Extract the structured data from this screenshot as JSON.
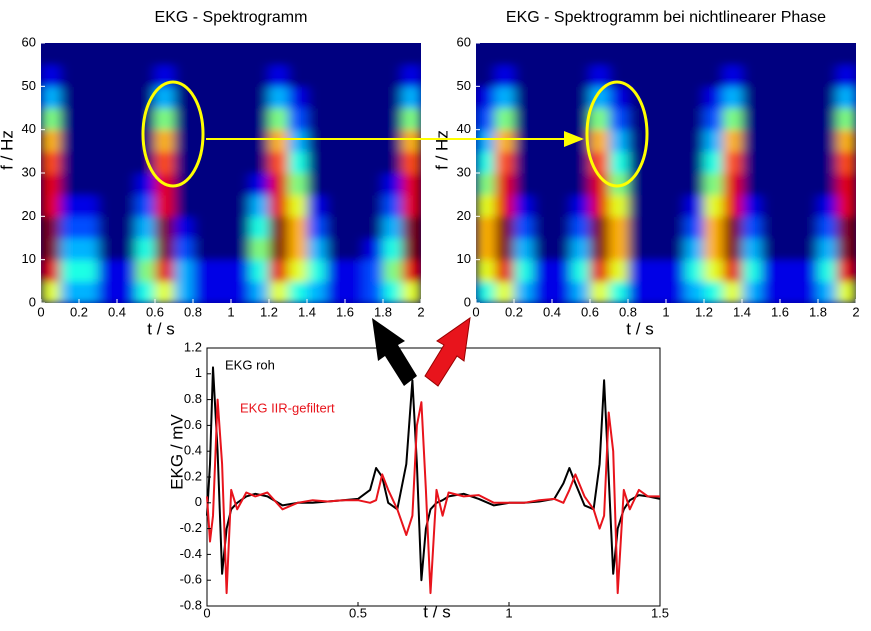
{
  "chart_data": [
    {
      "type": "heatmap",
      "title": "EKG - Spektrogramm",
      "xlabel": "t / s",
      "ylabel": "f / Hz",
      "xlim": [
        0,
        2
      ],
      "ylim": [
        0,
        60
      ],
      "zlim": [
        0,
        10
      ],
      "colormap": "jet",
      "xticks": [
        0,
        0.2,
        0.4,
        0.6,
        0.8,
        1,
        1.2,
        1.4,
        1.6,
        1.8,
        2
      ],
      "yticks": [
        0,
        10,
        20,
        30,
        40,
        50,
        60
      ],
      "values": [
        [
          6,
          9,
          10,
          10,
          9,
          9,
          8,
          7,
          5,
          3,
          1,
          0
        ],
        [
          3,
          4,
          3,
          2,
          1,
          0,
          0,
          0,
          0,
          0,
          0,
          0
        ],
        [
          3,
          4,
          3,
          2,
          1,
          0,
          0,
          0,
          0,
          0,
          0,
          0
        ],
        [
          1,
          1,
          0,
          0,
          0,
          0,
          0,
          0,
          0,
          0,
          0,
          0
        ],
        [
          1,
          1,
          0,
          0,
          0,
          0,
          0,
          0,
          0,
          0,
          0,
          0
        ],
        [
          4,
          5,
          4,
          3,
          2,
          1,
          0,
          0,
          0,
          0,
          0,
          0
        ],
        [
          6,
          9,
          10,
          10,
          9,
          9,
          8,
          7,
          5,
          3,
          1,
          0
        ],
        [
          3,
          3,
          2,
          1,
          0,
          0,
          0,
          0,
          0,
          0,
          0,
          0
        ],
        [
          1,
          1,
          0,
          0,
          0,
          0,
          0,
          0,
          0,
          0,
          0,
          0
        ],
        [
          1,
          1,
          0,
          0,
          0,
          0,
          0,
          0,
          0,
          0,
          0,
          0
        ],
        [
          1,
          1,
          0,
          0,
          0,
          0,
          0,
          0,
          0,
          0,
          0,
          0
        ],
        [
          3,
          4,
          5,
          4,
          3,
          1,
          0,
          0,
          0,
          0,
          0,
          0
        ],
        [
          6,
          9,
          10,
          10,
          9,
          9,
          8,
          7,
          5,
          3,
          1,
          0
        ],
        [
          4,
          6,
          7,
          7,
          6,
          5,
          4,
          3,
          2,
          1,
          0,
          0
        ],
        [
          3,
          4,
          3,
          2,
          1,
          0,
          0,
          0,
          0,
          0,
          0,
          0
        ],
        [
          1,
          1,
          0,
          0,
          0,
          0,
          0,
          0,
          0,
          0,
          0,
          0
        ],
        [
          1,
          1,
          0,
          0,
          0,
          0,
          0,
          0,
          0,
          0,
          0,
          0
        ],
        [
          2,
          2,
          1,
          0,
          0,
          0,
          0,
          0,
          0,
          0,
          0,
          0
        ],
        [
          4,
          5,
          4,
          3,
          2,
          1,
          0,
          0,
          0,
          0,
          0,
          0
        ],
        [
          6,
          9,
          10,
          10,
          9,
          9,
          8,
          7,
          5,
          3,
          1,
          0
        ]
      ]
    },
    {
      "type": "heatmap",
      "title": "EKG - Spektrogramm  bei nichtlinearer Phase",
      "xlabel": "t / s",
      "ylabel": "f / Hz",
      "xlim": [
        0,
        2
      ],
      "ylim": [
        0,
        60
      ],
      "zlim": [
        0,
        10
      ],
      "colormap": "jet",
      "xticks": [
        0,
        0.2,
        0.4,
        0.6,
        0.8,
        1,
        1.2,
        1.4,
        1.6,
        1.8,
        2
      ],
      "yticks": [
        0,
        10,
        20,
        30,
        40,
        50,
        60
      ],
      "values": [
        [
          4,
          6,
          7,
          7,
          6,
          5,
          4,
          3,
          2,
          1,
          0,
          0
        ],
        [
          6,
          9,
          10,
          10,
          9,
          9,
          8,
          7,
          5,
          3,
          1,
          0
        ],
        [
          3,
          4,
          3,
          2,
          1,
          0,
          0,
          0,
          0,
          0,
          0,
          0
        ],
        [
          1,
          1,
          0,
          0,
          0,
          0,
          0,
          0,
          0,
          0,
          0,
          0
        ],
        [
          1,
          1,
          0,
          0,
          0,
          0,
          0,
          0,
          0,
          0,
          0,
          0
        ],
        [
          3,
          4,
          3,
          2,
          1,
          0,
          0,
          0,
          0,
          0,
          0,
          0
        ],
        [
          6,
          9,
          10,
          10,
          9,
          9,
          8,
          7,
          5,
          3,
          1,
          0
        ],
        [
          4,
          6,
          7,
          7,
          6,
          5,
          4,
          3,
          2,
          1,
          0,
          0
        ],
        [
          1,
          1,
          0,
          0,
          0,
          0,
          0,
          0,
          0,
          0,
          0,
          0
        ],
        [
          1,
          1,
          0,
          0,
          0,
          0,
          0,
          0,
          0,
          0,
          0,
          0
        ],
        [
          1,
          1,
          0,
          0,
          0,
          0,
          0,
          0,
          0,
          0,
          0,
          0
        ],
        [
          3,
          4,
          3,
          2,
          1,
          0,
          0,
          0,
          0,
          0,
          0,
          0
        ],
        [
          4,
          6,
          7,
          7,
          6,
          5,
          4,
          3,
          2,
          1,
          0,
          0
        ],
        [
          6,
          9,
          10,
          10,
          9,
          9,
          8,
          7,
          5,
          3,
          1,
          0
        ],
        [
          3,
          4,
          3,
          2,
          1,
          0,
          0,
          0,
          0,
          0,
          0,
          0
        ],
        [
          1,
          1,
          0,
          0,
          0,
          0,
          0,
          0,
          0,
          0,
          0,
          0
        ],
        [
          1,
          1,
          0,
          0,
          0,
          0,
          0,
          0,
          0,
          0,
          0,
          0
        ],
        [
          1,
          1,
          0,
          0,
          0,
          0,
          0,
          0,
          0,
          0,
          0,
          0
        ],
        [
          3,
          4,
          3,
          2,
          1,
          0,
          0,
          0,
          0,
          0,
          0,
          0
        ],
        [
          6,
          9,
          10,
          10,
          9,
          9,
          8,
          7,
          5,
          3,
          1,
          0
        ]
      ]
    },
    {
      "type": "line",
      "xlabel": "t / s",
      "ylabel": "EKG / mV",
      "xlim": [
        0,
        1.5
      ],
      "ylim": [
        -0.8,
        1.2
      ],
      "xticks": [
        0,
        0.5,
        1,
        1.5
      ],
      "yticks": [
        -0.8,
        -0.6,
        -0.4,
        -0.2,
        0,
        0.2,
        0.4,
        0.6,
        0.8,
        1,
        1.2
      ],
      "x": [
        0,
        0.01,
        0.02,
        0.035,
        0.05,
        0.065,
        0.08,
        0.1,
        0.13,
        0.16,
        0.2,
        0.25,
        0.3,
        0.35,
        0.4,
        0.45,
        0.5,
        0.54,
        0.56,
        0.58,
        0.6,
        0.63,
        0.66,
        0.68,
        0.695,
        0.71,
        0.725,
        0.74,
        0.76,
        0.78,
        0.8,
        0.85,
        0.9,
        0.95,
        1,
        1.05,
        1.1,
        1.15,
        1.18,
        1.2,
        1.22,
        1.25,
        1.28,
        1.3,
        1.315,
        1.33,
        1.345,
        1.36,
        1.38,
        1.4,
        1.43,
        1.46,
        1.5
      ],
      "series": [
        {
          "name": "EKG roh",
          "color": "#000000",
          "values": [
            -0.1,
            0.3,
            1.05,
            0.4,
            -0.55,
            -0.2,
            -0.05,
            0,
            0.05,
            0.07,
            0.05,
            -0.02,
            0,
            0,
            0.01,
            0.02,
            0.03,
            0.1,
            0.27,
            0.2,
            0,
            -0.05,
            0.3,
            0.95,
            0.3,
            -0.6,
            -0.2,
            -0.05,
            0,
            0.02,
            0.05,
            0.07,
            0.03,
            -0.02,
            0,
            0,
            0.01,
            0.03,
            0.15,
            0.27,
            0.15,
            -0.02,
            -0.05,
            0.3,
            0.95,
            0.2,
            -0.55,
            -0.2,
            -0.05,
            0.02,
            0.06,
            0.05,
            0.03
          ]
        },
        {
          "name": "EKG IIR-gefiltert",
          "color": "#e8141c",
          "values": [
            0.05,
            -0.3,
            -0.1,
            0.8,
            0.3,
            -0.7,
            0.1,
            -0.05,
            0.08,
            0.05,
            0.08,
            -0.05,
            0,
            0.02,
            0.01,
            0.02,
            0.02,
            0,
            0.02,
            0.22,
            0.1,
            -0.05,
            -0.25,
            -0.1,
            0.6,
            0.78,
            0.1,
            -0.7,
            0.1,
            -0.1,
            0.08,
            0.05,
            0.06,
            0,
            0,
            0,
            0.02,
            0.03,
            0,
            0.1,
            0.22,
            0.05,
            -0.05,
            -0.2,
            -0.1,
            0.7,
            0.4,
            -0.7,
            0.1,
            -0.05,
            0.1,
            0.05,
            0.05
          ]
        }
      ]
    }
  ]
}
